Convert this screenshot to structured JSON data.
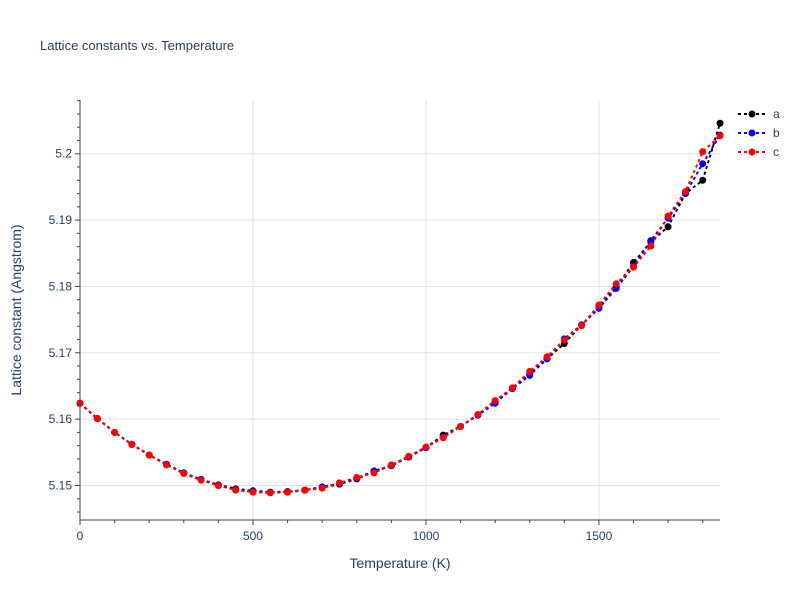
{
  "chart_data": {
    "type": "line",
    "title": "Lattice constants vs. Temperature",
    "xlabel": "Temperature (K)",
    "ylabel": "Lattice constant (Angstrom)",
    "xlim": [
      0,
      1850
    ],
    "ylim": [
      5.1448,
      5.2081
    ],
    "xticks": [
      0,
      500,
      1000,
      1500
    ],
    "xtick_labels": [
      "0",
      "500",
      "1000",
      "1500"
    ],
    "yticks": [
      5.15,
      5.16,
      5.17,
      5.18,
      5.19,
      5.2
    ],
    "ytick_labels": [
      "5.15",
      "5.16",
      "5.17",
      "5.18",
      "5.19",
      "5.2"
    ],
    "grid": true,
    "legend_position": "top-right",
    "x": [
      0,
      50,
      100,
      150,
      200,
      250,
      300,
      350,
      400,
      450,
      500,
      550,
      600,
      650,
      700,
      750,
      800,
      850,
      900,
      950,
      1000,
      1050,
      1100,
      1150,
      1200,
      1250,
      1300,
      1350,
      1400,
      1450,
      1500,
      1550,
      1600,
      1650,
      1700,
      1750,
      1800,
      1850
    ],
    "series": [
      {
        "name": "a",
        "color": "#000000",
        "values": [
          5.1624,
          5.1601,
          5.158,
          5.1562,
          5.1546,
          5.1532,
          5.1519,
          5.1509,
          5.1501,
          5.1495,
          5.1492,
          5.149,
          5.1491,
          5.1493,
          5.1497,
          5.1502,
          5.151,
          5.1521,
          5.153,
          5.1543,
          5.1557,
          5.1576,
          5.1589,
          5.1606,
          5.1625,
          5.1647,
          5.1669,
          5.1691,
          5.1714,
          5.1742,
          5.1769,
          5.1799,
          5.1836,
          5.1867,
          5.189,
          5.194,
          5.196,
          5.2046
        ]
      },
      {
        "name": "b",
        "color": "#0000ff",
        "values": [
          5.1624,
          5.1601,
          5.158,
          5.1562,
          5.1546,
          5.1532,
          5.1519,
          5.1509,
          5.15,
          5.1494,
          5.1491,
          5.1489,
          5.149,
          5.1493,
          5.1498,
          5.1503,
          5.1511,
          5.1522,
          5.153,
          5.1543,
          5.1557,
          5.1573,
          5.1589,
          5.1606,
          5.1624,
          5.1646,
          5.1666,
          5.1691,
          5.1721,
          5.1742,
          5.1767,
          5.1797,
          5.183,
          5.1869,
          5.1903,
          5.194,
          5.1985,
          5.2028
        ]
      },
      {
        "name": "c",
        "color": "#ff0000",
        "values": [
          5.1624,
          5.1601,
          5.158,
          5.1562,
          5.1546,
          5.1531,
          5.1518,
          5.1508,
          5.15,
          5.1493,
          5.149,
          5.1489,
          5.149,
          5.1493,
          5.1496,
          5.1504,
          5.1512,
          5.1519,
          5.1531,
          5.1544,
          5.1558,
          5.1572,
          5.1589,
          5.1607,
          5.1628,
          5.1647,
          5.1672,
          5.1694,
          5.1719,
          5.1741,
          5.1772,
          5.1804,
          5.1829,
          5.1861,
          5.1906,
          5.1943,
          5.2003,
          5.2027
        ]
      }
    ]
  }
}
